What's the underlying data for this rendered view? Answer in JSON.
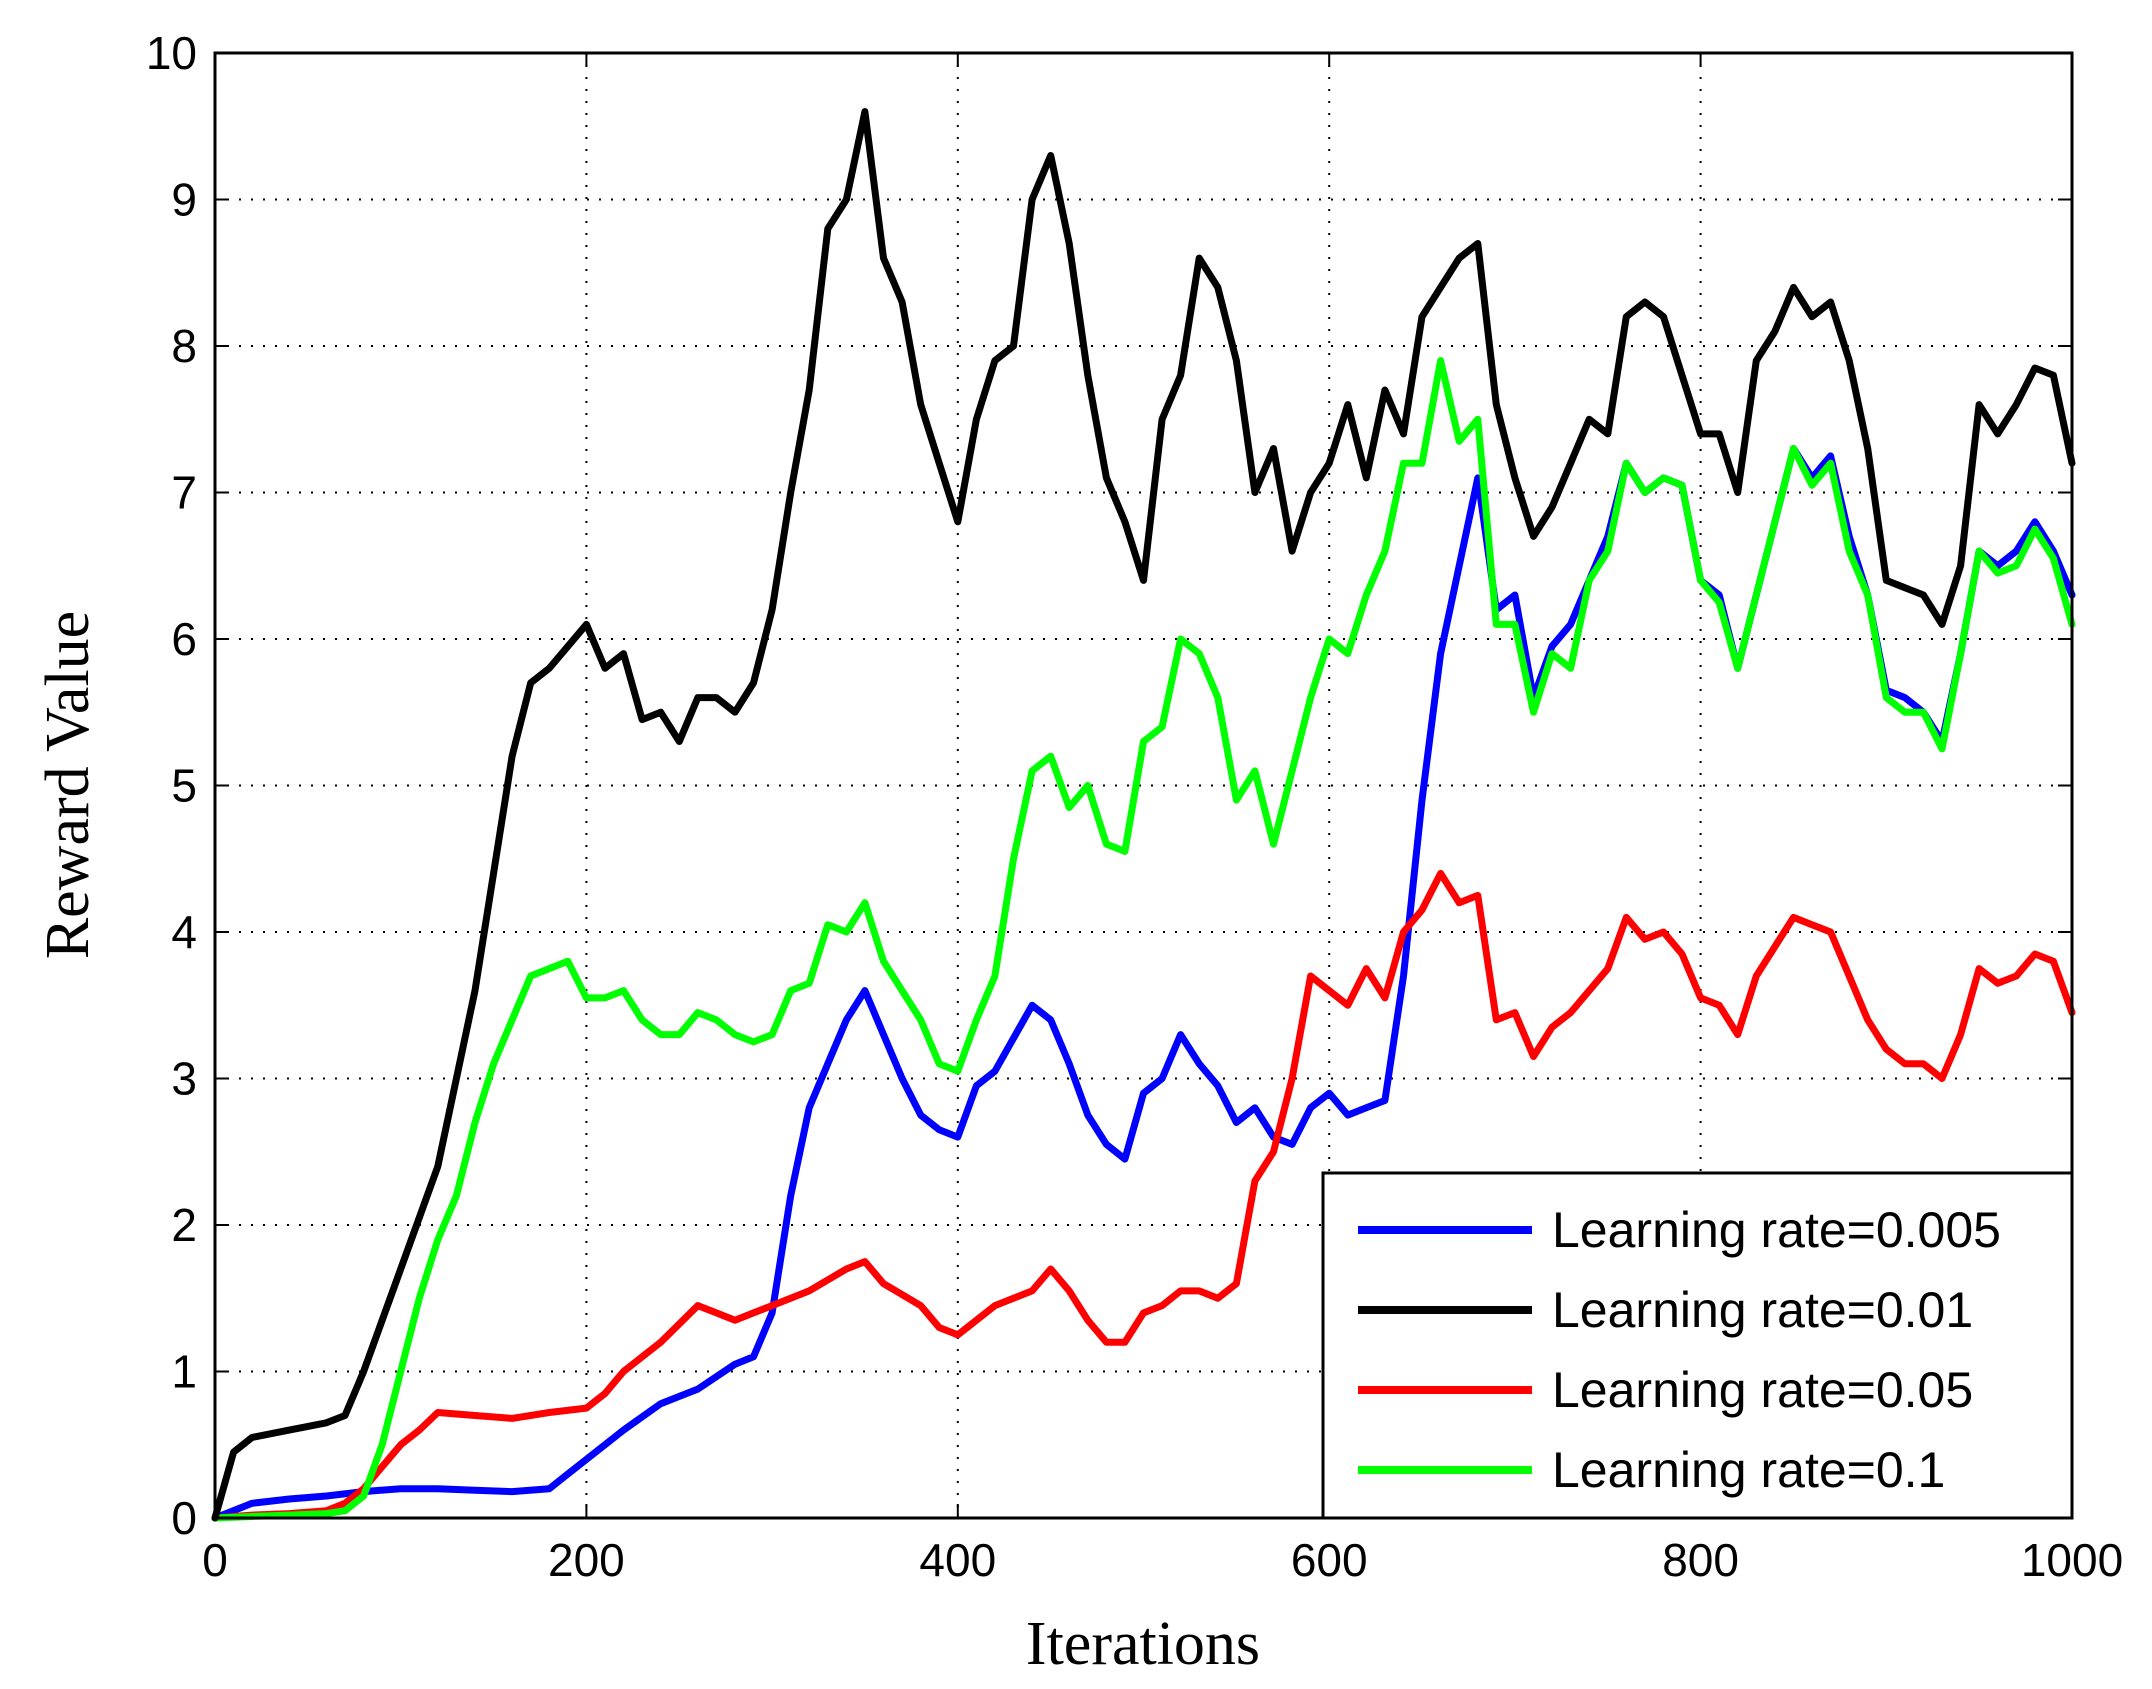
{
  "chart_data": {
    "type": "line",
    "xlabel": "Iterations",
    "ylabel": "Reward Value",
    "xlim": [
      0,
      1000
    ],
    "ylim": [
      0,
      10
    ],
    "xticks": [
      0,
      200,
      400,
      600,
      800,
      1000
    ],
    "yticks": [
      0,
      1,
      2,
      3,
      4,
      5,
      6,
      7,
      8,
      9,
      10
    ],
    "grid": true,
    "legend_position": "bottom-right",
    "series": [
      {
        "name": "Learning rate=0.005",
        "color": "#0000ff",
        "x": [
          0,
          20,
          40,
          60,
          80,
          100,
          120,
          140,
          160,
          180,
          190,
          200,
          220,
          240,
          260,
          280,
          290,
          300,
          310,
          320,
          330,
          340,
          350,
          360,
          370,
          380,
          390,
          400,
          410,
          420,
          440,
          450,
          460,
          470,
          480,
          490,
          500,
          510,
          520,
          530,
          540,
          550,
          560,
          570,
          580,
          590,
          600,
          610,
          620,
          630,
          640,
          650,
          660,
          670,
          680,
          690,
          700,
          710,
          720,
          730,
          740,
          750,
          760,
          770,
          780,
          790,
          800,
          810,
          820,
          830,
          840,
          850,
          860,
          870,
          880,
          890,
          900,
          910,
          920,
          930,
          940,
          950,
          960,
          970,
          980,
          990,
          1000
        ],
        "values": [
          0.0,
          0.1,
          0.13,
          0.15,
          0.18,
          0.2,
          0.2,
          0.19,
          0.18,
          0.2,
          0.3,
          0.4,
          0.6,
          0.78,
          0.88,
          1.05,
          1.1,
          1.4,
          2.2,
          2.8,
          3.1,
          3.4,
          3.6,
          3.3,
          3.0,
          2.75,
          2.65,
          2.6,
          2.95,
          3.05,
          3.5,
          3.4,
          3.1,
          2.75,
          2.55,
          2.45,
          2.9,
          3.0,
          3.3,
          3.1,
          2.95,
          2.7,
          2.8,
          2.6,
          2.55,
          2.8,
          2.9,
          2.75,
          2.8,
          2.85,
          3.7,
          4.9,
          5.9,
          6.5,
          7.1,
          6.2,
          6.3,
          5.6,
          5.95,
          6.1,
          6.4,
          6.7,
          7.2,
          7.0,
          7.1,
          7.05,
          6.4,
          6.3,
          5.8,
          6.3,
          6.8,
          7.3,
          7.1,
          7.25,
          6.7,
          6.3,
          5.65,
          5.6,
          5.5,
          5.3,
          5.9,
          6.6,
          6.5,
          6.6,
          6.8,
          6.6,
          6.3
        ]
      },
      {
        "name": "Learning rate=0.01",
        "color": "#000000",
        "x": [
          0,
          10,
          20,
          40,
          60,
          70,
          80,
          100,
          120,
          140,
          160,
          170,
          180,
          200,
          210,
          220,
          230,
          240,
          250,
          260,
          270,
          280,
          290,
          300,
          310,
          320,
          330,
          340,
          350,
          360,
          370,
          380,
          390,
          400,
          410,
          420,
          430,
          440,
          450,
          460,
          470,
          480,
          490,
          500,
          510,
          520,
          530,
          540,
          550,
          560,
          570,
          580,
          590,
          600,
          610,
          620,
          630,
          640,
          650,
          660,
          670,
          680,
          690,
          700,
          710,
          720,
          730,
          740,
          750,
          760,
          770,
          780,
          790,
          800,
          810,
          820,
          830,
          840,
          850,
          860,
          870,
          880,
          890,
          900,
          910,
          920,
          930,
          940,
          950,
          960,
          970,
          980,
          990,
          1000
        ],
        "values": [
          0.0,
          0.45,
          0.55,
          0.6,
          0.65,
          0.7,
          1.0,
          1.7,
          2.4,
          3.6,
          5.2,
          5.7,
          5.8,
          6.1,
          5.8,
          5.9,
          5.45,
          5.5,
          5.3,
          5.6,
          5.6,
          5.5,
          5.7,
          6.2,
          7.0,
          7.7,
          8.8,
          9.0,
          9.6,
          8.6,
          8.3,
          7.6,
          7.2,
          6.8,
          7.5,
          7.9,
          8.0,
          9.0,
          9.3,
          8.7,
          7.8,
          7.1,
          6.8,
          6.4,
          7.5,
          7.8,
          8.6,
          8.4,
          7.9,
          7.0,
          7.3,
          6.6,
          7.0,
          7.2,
          7.6,
          7.1,
          7.7,
          7.4,
          8.2,
          8.4,
          8.6,
          8.7,
          7.6,
          7.1,
          6.7,
          6.9,
          7.2,
          7.5,
          7.4,
          8.2,
          8.3,
          8.2,
          7.8,
          7.4,
          7.4,
          7.0,
          7.9,
          8.1,
          8.4,
          8.2,
          8.3,
          7.9,
          7.3,
          6.4,
          6.35,
          6.3,
          6.1,
          6.5,
          7.6,
          7.4,
          7.6,
          7.85,
          7.8,
          7.2
        ]
      },
      {
        "name": "Learning rate=0.05",
        "color": "#ff0000",
        "x": [
          0,
          20,
          40,
          60,
          70,
          80,
          90,
          100,
          110,
          120,
          140,
          160,
          180,
          200,
          210,
          220,
          240,
          260,
          270,
          280,
          290,
          300,
          320,
          340,
          350,
          360,
          380,
          390,
          400,
          410,
          420,
          440,
          450,
          460,
          470,
          480,
          490,
          500,
          510,
          520,
          530,
          540,
          550,
          560,
          570,
          580,
          590,
          600,
          610,
          620,
          630,
          640,
          650,
          660,
          670,
          680,
          690,
          700,
          710,
          720,
          730,
          740,
          750,
          760,
          770,
          780,
          790,
          800,
          810,
          820,
          830,
          840,
          850,
          860,
          870,
          880,
          890,
          900,
          910,
          920,
          930,
          940,
          950,
          960,
          970,
          980,
          990,
          1000
        ],
        "values": [
          0.0,
          0.02,
          0.03,
          0.05,
          0.1,
          0.2,
          0.35,
          0.5,
          0.6,
          0.72,
          0.7,
          0.68,
          0.72,
          0.75,
          0.85,
          1.0,
          1.2,
          1.45,
          1.4,
          1.35,
          1.4,
          1.45,
          1.55,
          1.7,
          1.75,
          1.6,
          1.45,
          1.3,
          1.25,
          1.35,
          1.45,
          1.55,
          1.7,
          1.55,
          1.35,
          1.2,
          1.2,
          1.4,
          1.45,
          1.55,
          1.55,
          1.5,
          1.6,
          2.3,
          2.5,
          3.0,
          3.7,
          3.6,
          3.5,
          3.75,
          3.55,
          4.0,
          4.15,
          4.4,
          4.2,
          4.25,
          3.4,
          3.45,
          3.15,
          3.35,
          3.45,
          3.6,
          3.75,
          4.1,
          3.95,
          4.0,
          3.85,
          3.55,
          3.5,
          3.3,
          3.7,
          3.9,
          4.1,
          4.05,
          4.0,
          3.7,
          3.4,
          3.2,
          3.1,
          3.1,
          3.0,
          3.3,
          3.75,
          3.65,
          3.7,
          3.85,
          3.8,
          3.45
        ]
      },
      {
        "name": "Learning rate=0.1",
        "color": "#00ff00",
        "x": [
          0,
          20,
          40,
          60,
          70,
          80,
          90,
          100,
          110,
          120,
          130,
          140,
          150,
          160,
          170,
          180,
          190,
          200,
          210,
          220,
          230,
          240,
          250,
          260,
          270,
          280,
          290,
          300,
          310,
          320,
          330,
          340,
          350,
          360,
          370,
          380,
          390,
          400,
          410,
          420,
          430,
          440,
          450,
          460,
          470,
          480,
          490,
          500,
          510,
          520,
          530,
          540,
          550,
          560,
          570,
          580,
          590,
          600,
          610,
          620,
          630,
          640,
          650,
          660,
          670,
          680,
          690,
          700,
          710,
          720,
          730,
          740,
          750,
          760,
          770,
          780,
          790,
          800,
          810,
          820,
          830,
          840,
          850,
          860,
          870,
          880,
          890,
          900,
          910,
          920,
          930,
          940,
          950,
          960,
          970,
          980,
          990,
          1000
        ],
        "values": [
          0.0,
          0.01,
          0.02,
          0.03,
          0.05,
          0.15,
          0.5,
          1.0,
          1.5,
          1.9,
          2.2,
          2.7,
          3.1,
          3.4,
          3.7,
          3.75,
          3.8,
          3.55,
          3.55,
          3.6,
          3.4,
          3.3,
          3.3,
          3.45,
          3.4,
          3.3,
          3.25,
          3.3,
          3.6,
          3.65,
          4.05,
          4.0,
          4.2,
          3.8,
          3.6,
          3.4,
          3.1,
          3.05,
          3.4,
          3.7,
          4.5,
          5.1,
          5.2,
          4.85,
          5.0,
          4.6,
          4.55,
          5.3,
          5.4,
          6.0,
          5.9,
          5.6,
          4.9,
          5.1,
          4.6,
          5.1,
          5.6,
          6.0,
          5.9,
          6.3,
          6.6,
          7.2,
          7.2,
          7.9,
          7.35,
          7.5,
          6.1,
          6.1,
          5.5,
          5.9,
          5.8,
          6.4,
          6.6,
          7.2,
          7.0,
          7.1,
          7.05,
          6.4,
          6.25,
          5.8,
          6.3,
          6.8,
          7.3,
          7.05,
          7.2,
          6.6,
          6.3,
          5.6,
          5.5,
          5.5,
          5.25,
          5.9,
          6.6,
          6.45,
          6.5,
          6.75,
          6.55,
          6.1
        ]
      }
    ]
  }
}
